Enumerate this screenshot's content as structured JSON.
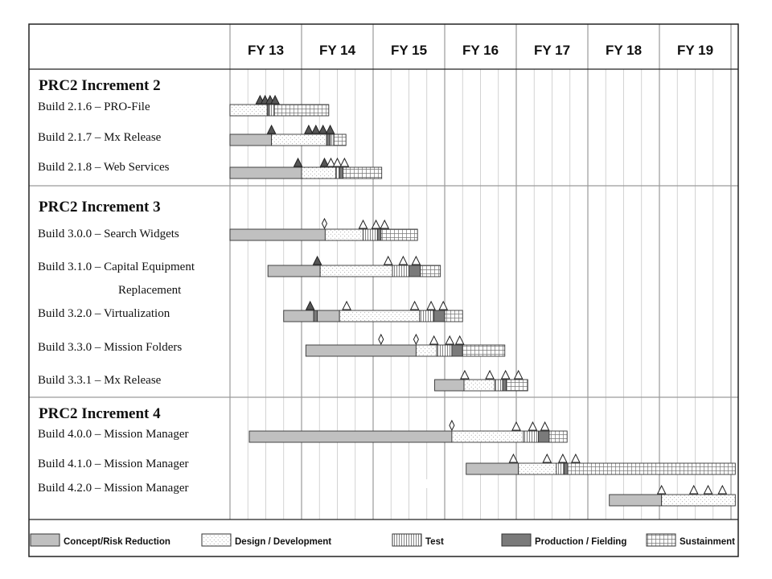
{
  "fiscal_years": [
    "FY 13",
    "FY 14",
    "FY 15",
    "FY 16",
    "FY 17",
    "FY 18",
    "FY 19"
  ],
  "groups": [
    {
      "title": "PRC2 Increment 2",
      "rows": [
        {
          "label": "Build 2.1.6 – PRO-File",
          "segments": [
            {
              "phase": "design",
              "start": 0.0,
              "end": 0.52
            },
            {
              "phase": "production",
              "start": 0.52,
              "end": 0.55
            },
            {
              "phase": "test",
              "start": 0.55,
              "end": 0.62
            },
            {
              "phase": "sustainment",
              "start": 0.62,
              "end": 1.38
            }
          ],
          "milestones": [
            {
              "x": 0.42,
              "kind": "filled"
            },
            {
              "x": 0.49,
              "kind": "filled"
            },
            {
              "x": 0.56,
              "kind": "filled"
            },
            {
              "x": 0.63,
              "kind": "filled"
            }
          ]
        },
        {
          "label": "Build 2.1.7 –  Mx Release",
          "segments": [
            {
              "phase": "concept",
              "start": 0.0,
              "end": 0.58
            },
            {
              "phase": "design",
              "start": 0.58,
              "end": 1.35
            },
            {
              "phase": "production",
              "start": 1.35,
              "end": 1.4
            },
            {
              "phase": "test",
              "start": 1.4,
              "end": 1.45
            },
            {
              "phase": "sustainment",
              "start": 1.45,
              "end": 1.62
            }
          ],
          "milestones": [
            {
              "x": 0.58,
              "kind": "filled"
            },
            {
              "x": 1.1,
              "kind": "filled"
            },
            {
              "x": 1.2,
              "kind": "filled"
            },
            {
              "x": 1.3,
              "kind": "filled"
            },
            {
              "x": 1.4,
              "kind": "filled"
            }
          ]
        },
        {
          "label": "Build 2.1.8 – Web Services",
          "segments": [
            {
              "phase": "concept",
              "start": 0.0,
              "end": 1.0
            },
            {
              "phase": "design",
              "start": 1.0,
              "end": 1.48
            },
            {
              "phase": "test",
              "start": 1.48,
              "end": 1.53
            },
            {
              "phase": "production",
              "start": 1.53,
              "end": 1.58
            },
            {
              "phase": "sustainment",
              "start": 1.58,
              "end": 2.12
            }
          ],
          "milestones": [
            {
              "x": 0.95,
              "kind": "filled"
            },
            {
              "x": 1.32,
              "kind": "filled"
            },
            {
              "x": 1.41,
              "kind": "open"
            },
            {
              "x": 1.5,
              "kind": "open"
            },
            {
              "x": 1.6,
              "kind": "open"
            }
          ]
        }
      ]
    },
    {
      "title": "PRC2 Increment 3",
      "rows": [
        {
          "label": "Build 3.0.0 – Search Widgets",
          "segments": [
            {
              "phase": "concept",
              "start": 0.0,
              "end": 1.33
            },
            {
              "phase": "design",
              "start": 1.33,
              "end": 1.86
            },
            {
              "phase": "test",
              "start": 1.86,
              "end": 2.06
            },
            {
              "phase": "production",
              "start": 2.06,
              "end": 2.11
            },
            {
              "phase": "sustainment",
              "start": 2.11,
              "end": 2.62
            }
          ],
          "milestones": [
            {
              "x": 1.32,
              "kind": "diamond"
            },
            {
              "x": 1.86,
              "kind": "open"
            },
            {
              "x": 2.04,
              "kind": "open"
            },
            {
              "x": 2.16,
              "kind": "open"
            }
          ]
        },
        {
          "label": "Build 3.1.0 – Capital Equipment",
          "label2": "Replacement",
          "segments": [
            {
              "phase": "concept",
              "start": 0.53,
              "end": 1.26
            },
            {
              "phase": "design",
              "start": 1.26,
              "end": 2.27
            },
            {
              "phase": "test",
              "start": 2.27,
              "end": 2.5
            },
            {
              "phase": "production",
              "start": 2.5,
              "end": 2.66
            },
            {
              "phase": "sustainment",
              "start": 2.66,
              "end": 2.94
            }
          ],
          "milestones": [
            {
              "x": 1.22,
              "kind": "filled"
            },
            {
              "x": 2.21,
              "kind": "open"
            },
            {
              "x": 2.42,
              "kind": "open"
            },
            {
              "x": 2.6,
              "kind": "open"
            }
          ]
        },
        {
          "label": "Build 3.2.0 – Virtualization",
          "segments": [
            {
              "phase": "concept",
              "start": 0.75,
              "end": 1.17
            },
            {
              "phase": "production",
              "start": 1.17,
              "end": 1.22
            },
            {
              "phase": "concept",
              "start": 1.22,
              "end": 1.53
            },
            {
              "phase": "design",
              "start": 1.53,
              "end": 2.65
            },
            {
              "phase": "test",
              "start": 2.65,
              "end": 2.85
            },
            {
              "phase": "production",
              "start": 2.85,
              "end": 3.0
            },
            {
              "phase": "sustainment",
              "start": 3.0,
              "end": 3.25
            }
          ],
          "milestones": [
            {
              "x": 1.12,
              "kind": "filled"
            },
            {
              "x": 1.63,
              "kind": "open"
            },
            {
              "x": 2.58,
              "kind": "open"
            },
            {
              "x": 2.81,
              "kind": "open"
            },
            {
              "x": 2.98,
              "kind": "open"
            }
          ]
        },
        {
          "label": "Build 3.3.0 –  Mission Folders",
          "segments": [
            {
              "phase": "concept",
              "start": 1.06,
              "end": 2.6
            },
            {
              "phase": "design",
              "start": 2.6,
              "end": 2.89
            },
            {
              "phase": "test",
              "start": 2.89,
              "end": 3.1
            },
            {
              "phase": "production",
              "start": 3.1,
              "end": 3.25
            },
            {
              "phase": "sustainment",
              "start": 3.25,
              "end": 3.84
            }
          ],
          "milestones": [
            {
              "x": 2.11,
              "kind": "diamond"
            },
            {
              "x": 2.6,
              "kind": "diamond"
            },
            {
              "x": 2.85,
              "kind": "open"
            },
            {
              "x": 3.07,
              "kind": "open"
            },
            {
              "x": 3.21,
              "kind": "open"
            }
          ]
        },
        {
          "label": "Build 3.3.1 – Mx Release",
          "segments": [
            {
              "phase": "concept",
              "start": 2.86,
              "end": 3.27
            },
            {
              "phase": "design",
              "start": 3.27,
              "end": 3.7
            },
            {
              "phase": "test",
              "start": 3.7,
              "end": 3.81
            },
            {
              "phase": "production",
              "start": 3.81,
              "end": 3.86
            },
            {
              "phase": "sustainment",
              "start": 3.86,
              "end": 4.16
            }
          ],
          "milestones": [
            {
              "x": 3.28,
              "kind": "open"
            },
            {
              "x": 3.63,
              "kind": "open"
            },
            {
              "x": 3.85,
              "kind": "open"
            },
            {
              "x": 4.03,
              "kind": "open"
            }
          ]
        }
      ]
    },
    {
      "title": "PRC2 Increment 4",
      "rows": [
        {
          "label": "Build 4.0.0 – Mission Manager",
          "segments": [
            {
              "phase": "concept",
              "start": 0.27,
              "end": 3.1
            },
            {
              "phase": "design",
              "start": 3.1,
              "end": 4.1
            },
            {
              "phase": "test",
              "start": 4.1,
              "end": 4.31
            },
            {
              "phase": "production",
              "start": 4.31,
              "end": 4.46
            },
            {
              "phase": "sustainment",
              "start": 4.46,
              "end": 4.71
            }
          ],
          "milestones": [
            {
              "x": 3.1,
              "kind": "diamond"
            },
            {
              "x": 4.0,
              "kind": "open"
            },
            {
              "x": 4.23,
              "kind": "open"
            },
            {
              "x": 4.4,
              "kind": "open"
            }
          ]
        },
        {
          "label": "Build 4.1.0 – Mission Manager",
          "segments": [
            {
              "phase": "concept",
              "start": 3.3,
              "end": 4.03
            },
            {
              "phase": "design",
              "start": 4.03,
              "end": 4.56
            },
            {
              "phase": "test",
              "start": 4.56,
              "end": 4.67
            },
            {
              "phase": "production",
              "start": 4.67,
              "end": 4.72
            },
            {
              "phase": "sustainment",
              "start": 4.72,
              "end": 7.06
            }
          ],
          "milestones": [
            {
              "x": 3.96,
              "kind": "open"
            },
            {
              "x": 4.43,
              "kind": "open"
            },
            {
              "x": 4.65,
              "kind": "open"
            },
            {
              "x": 4.83,
              "kind": "open"
            }
          ]
        },
        {
          "label": "Build 4.2.0 – Mission Manager",
          "segments": [
            {
              "phase": "concept",
              "start": 5.3,
              "end": 6.03
            },
            {
              "phase": "design",
              "start": 6.03,
              "end": 7.06
            }
          ],
          "milestones": [
            {
              "x": 6.03,
              "kind": "open"
            },
            {
              "x": 6.48,
              "kind": "open"
            },
            {
              "x": 6.68,
              "kind": "open"
            },
            {
              "x": 6.88,
              "kind": "open"
            }
          ]
        }
      ]
    }
  ],
  "legend": [
    {
      "phase": "concept",
      "label": "Concept/Risk Reduction"
    },
    {
      "phase": "design",
      "label": "Design / Development"
    },
    {
      "phase": "test",
      "label": "Test"
    },
    {
      "phase": "production",
      "label": "Production / Fielding"
    },
    {
      "phase": "sustainment",
      "label": "Sustainment"
    }
  ],
  "colors": {
    "concept": "#c0c0c0",
    "design": "#ffffff",
    "production": "#7a7a7a",
    "milestone_filled": "#555555",
    "grid_major": "#9a9a9a",
    "grid_minor": "#c8c8c8",
    "border": "#222222"
  }
}
